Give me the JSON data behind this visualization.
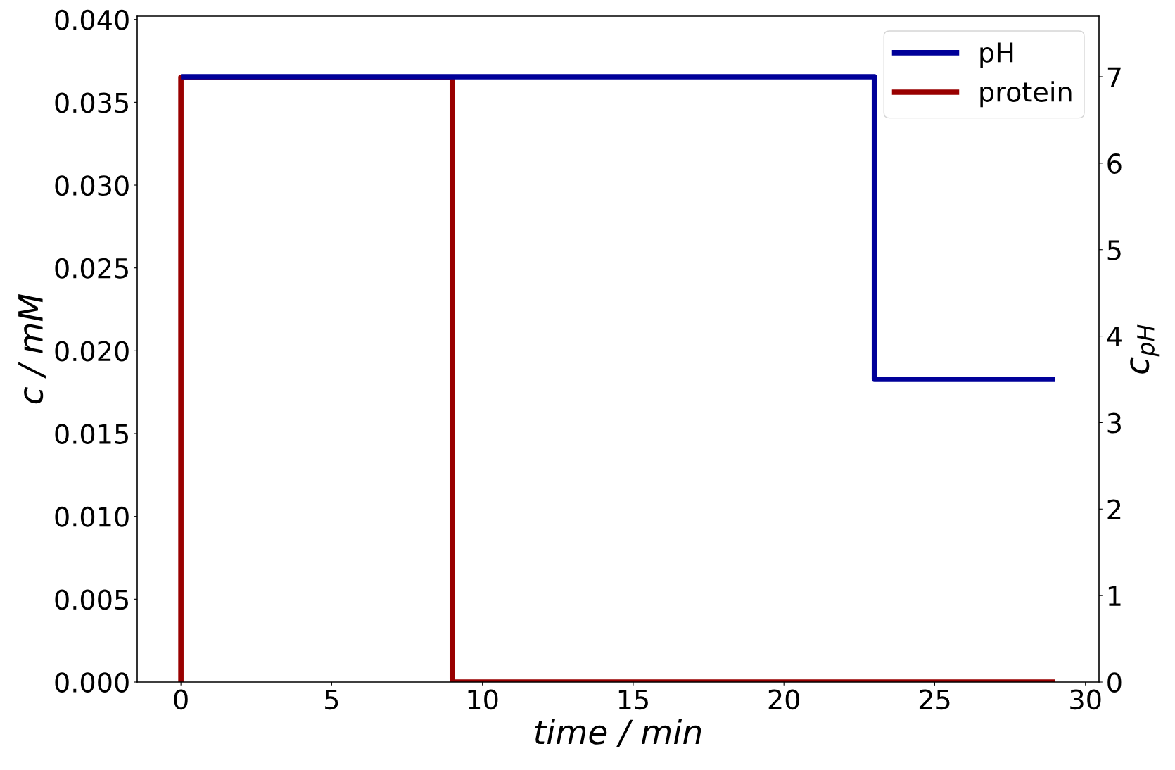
{
  "chart_data": {
    "type": "step",
    "xlabel": "time / min",
    "ylabel": "c / mM",
    "y2label": "c$_{pH}$",
    "series": [
      {
        "name": "pH",
        "color": "#000099",
        "axis": "y2",
        "x": [
          0,
          23,
          29
        ],
        "values": [
          7,
          3.5,
          3.5
        ]
      },
      {
        "name": "protein",
        "color": "#990000",
        "x": [
          0,
          0,
          9,
          29
        ],
        "values": [
          0,
          0.0365,
          0,
          0
        ]
      }
    ],
    "xlim": [
      -1.45,
      30.45
    ],
    "xticks": [
      0,
      5,
      10,
      15,
      20,
      25,
      30
    ],
    "ylim": [
      0,
      0.0402
    ],
    "yticks": [
      {
        "value": 0,
        "label": "0.000"
      },
      {
        "value": 0.005,
        "label": "0.005"
      },
      {
        "value": 0.01,
        "label": "0.010"
      },
      {
        "value": 0.015,
        "label": "0.015"
      },
      {
        "value": 0.02,
        "label": "0.020"
      },
      {
        "value": 0.025,
        "label": "0.025"
      },
      {
        "value": 0.03,
        "label": "0.030"
      },
      {
        "value": 0.035,
        "label": "0.035"
      },
      {
        "value": 0.04,
        "label": "0.040"
      }
    ],
    "y2lim": [
      0,
      7.7
    ],
    "y2ticks": [
      0,
      1,
      2,
      3,
      4,
      5,
      6,
      7
    ],
    "legend": "top right",
    "grid": false,
    "marker": "none",
    "line_style": "solid"
  }
}
